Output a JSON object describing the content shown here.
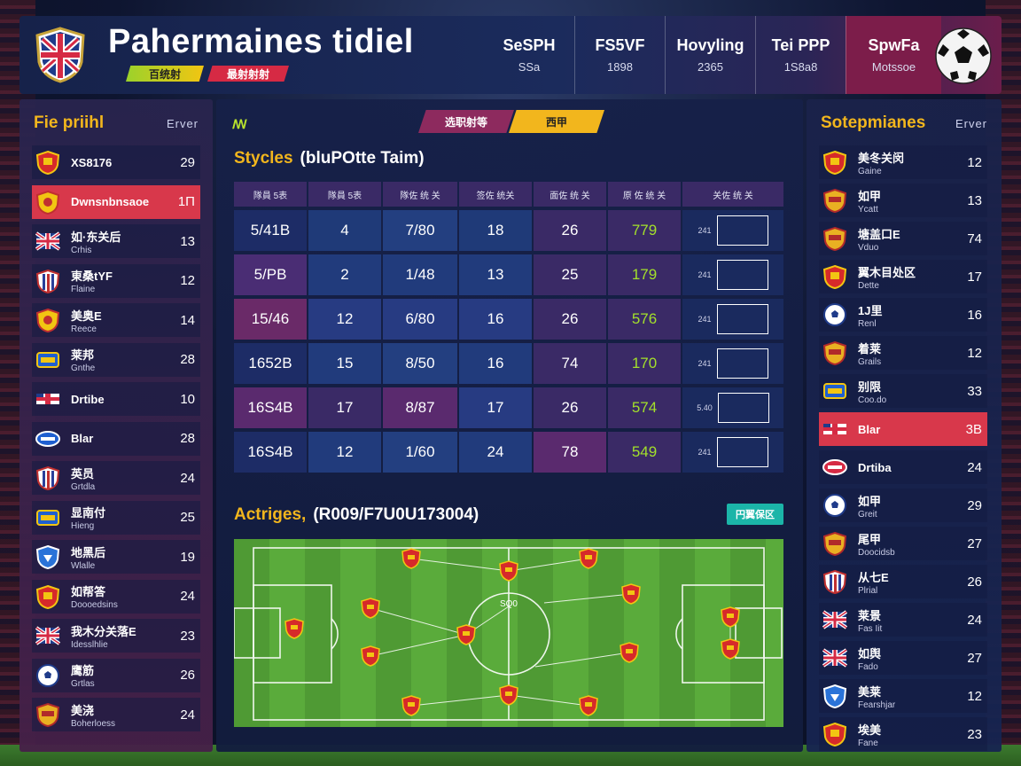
{
  "header": {
    "title": "Pahermaines tidiel",
    "tag1": "百统射",
    "tag2": "最射射射",
    "stats": [
      {
        "label": "SeSPH",
        "value": "SSa"
      },
      {
        "label": "FS5VF",
        "value": "1898"
      },
      {
        "label": "Hovyling",
        "value": "2365"
      },
      {
        "label": "Tei PPP",
        "value": "1S8a8"
      },
      {
        "label": "SpwFa",
        "value": "Motssoe"
      }
    ]
  },
  "left_panel": {
    "title": "Fie priihl",
    "subtitle": "Erver",
    "teams": [
      {
        "name": "XS8176",
        "sub": "",
        "score": "29",
        "icon": "crest-red"
      },
      {
        "name": "Dwnsnbnsaoe",
        "sub": "",
        "score": "1Π",
        "icon": "crest-yellow",
        "highlight": true
      },
      {
        "name": "如·东关后",
        "sub": "Crhis",
        "score": "13",
        "icon": "union-flag"
      },
      {
        "name": "東桑tYF",
        "sub": "Flaine",
        "score": "12",
        "icon": "crest-stripes"
      },
      {
        "name": "美奥E",
        "sub": "Reece",
        "score": "14",
        "icon": "crest-yellow"
      },
      {
        "name": "莱邦",
        "sub": "Gnthe",
        "score": "28",
        "icon": "crest-blue"
      },
      {
        "name": "Drtibe",
        "sub": "",
        "score": "10",
        "icon": "flag-cross"
      },
      {
        "name": "Blar",
        "sub": "",
        "score": "28",
        "icon": "oval-blue"
      },
      {
        "name": "英员",
        "sub": "Grtdla",
        "score": "24",
        "icon": "crest-stripes"
      },
      {
        "name": "显南付",
        "sub": "Hieng",
        "score": "25",
        "icon": "crest-blue"
      },
      {
        "name": "地黑后",
        "sub": "Wlalle",
        "score": "19",
        "icon": "crest-blue-shield"
      },
      {
        "name": "如帮答",
        "sub": "Doooedsins",
        "score": "24",
        "icon": "crest-red"
      },
      {
        "name": "我木分关落E",
        "sub": "Idesslhlie",
        "score": "23",
        "icon": "union-flag"
      },
      {
        "name": "鹰筋",
        "sub": "Grtlas",
        "score": "26",
        "icon": "ball"
      },
      {
        "name": "美浇",
        "sub": "Boherloess",
        "score": "24",
        "icon": "crest-gold"
      }
    ]
  },
  "center": {
    "tabs": [
      "选职射等",
      "西甲"
    ],
    "table_title_a": "Stycles",
    "table_title_b": "(bluPOtte Taim)",
    "columns": [
      "隊員 5表",
      "隊員 5表",
      "隊佐 统 关",
      "签佐 统关",
      "面佐 统 关",
      "原 佐 统 关",
      "关佐 统 关"
    ],
    "rows": [
      {
        "c1": "5/41B",
        "c2": "4",
        "c3": "7/80",
        "c4": "18",
        "c5": "26",
        "c6": "779",
        "c7": "241"
      },
      {
        "c1": "5/PB",
        "c2": "2",
        "c3": "1/48",
        "c4": "13",
        "c5": "25",
        "c6": "179",
        "c7": "241"
      },
      {
        "c1": "15/46",
        "c2": "12",
        "c3": "6/80",
        "c4": "16",
        "c5": "26",
        "c6": "576",
        "c7": "241"
      },
      {
        "c1": "1652B",
        "c2": "15",
        "c3": "8/50",
        "c4": "16",
        "c5": "74",
        "c6": "170",
        "c7": "241"
      },
      {
        "c1": "16S4B",
        "c2": "17",
        "c3": "8/87",
        "c4": "17",
        "c5": "26",
        "c6": "574",
        "c7": "5.40"
      },
      {
        "c1": "16S4B",
        "c2": "12",
        "c3": "1/60",
        "c4": "24",
        "c5": "78",
        "c6": "549",
        "c7": "241"
      }
    ],
    "formation_title_a": "Actriges,",
    "formation_title_b": "(R009/F7U0U173004)",
    "formation_badge": "円翼保区",
    "pitch_label": "SQ0"
  },
  "right_panel": {
    "title": "Sotepmianes",
    "subtitle": "Erver",
    "teams": [
      {
        "name": "美冬关闵",
        "sub": "Gaine",
        "score": "12",
        "icon": "crest-red"
      },
      {
        "name": "如甲",
        "sub": "Ycatt",
        "score": "13",
        "icon": "crest-gold"
      },
      {
        "name": "塘盖口E",
        "sub": "Vduo",
        "score": "74",
        "icon": "crest-gold"
      },
      {
        "name": "翼木目处区",
        "sub": "Dette",
        "score": "17",
        "icon": "crest-red"
      },
      {
        "name": "1J里",
        "sub": "Renl",
        "score": "16",
        "icon": "ball"
      },
      {
        "name": "着莱",
        "sub": "Grails",
        "score": "12",
        "icon": "crest-gold"
      },
      {
        "name": "别限",
        "sub": "Coo.do",
        "score": "33",
        "icon": "crest-blue"
      },
      {
        "name": "Blar",
        "sub": "",
        "score": "3B",
        "icon": "flag-cross",
        "highlight": true
      },
      {
        "name": "Drtiba",
        "sub": "",
        "score": "24",
        "icon": "oval-red"
      },
      {
        "name": "如甲",
        "sub": "Greit",
        "score": "29",
        "icon": "ball"
      },
      {
        "name": "尾甲",
        "sub": "Doocidsb",
        "score": "27",
        "icon": "crest-gold"
      },
      {
        "name": "从七E",
        "sub": "Plrial",
        "score": "26",
        "icon": "crest-stripes"
      },
      {
        "name": "莱景",
        "sub": "Fas Iit",
        "score": "24",
        "icon": "union-flag"
      },
      {
        "name": "如舆",
        "sub": "Fado",
        "score": "27",
        "icon": "union-flag"
      },
      {
        "name": "美莱",
        "sub": "Fearshjar",
        "score": "12",
        "icon": "crest-blue-shield"
      },
      {
        "name": "埃美",
        "sub": "Fane",
        "score": "23",
        "icon": "crest-red"
      }
    ]
  },
  "colors": {
    "accent": "#f2b61d",
    "highlight_left": "#d8384b",
    "highlight_right": "#8a2450",
    "teal": "#1bb5a8",
    "lime": "#a3e02b"
  }
}
